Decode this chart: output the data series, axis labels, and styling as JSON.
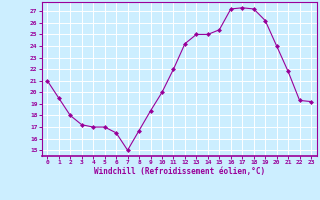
{
  "x": [
    0,
    1,
    2,
    3,
    4,
    5,
    6,
    7,
    8,
    9,
    10,
    11,
    12,
    13,
    14,
    15,
    16,
    17,
    18,
    19,
    20,
    21,
    22,
    23
  ],
  "y": [
    21.0,
    19.5,
    18.0,
    17.2,
    17.0,
    17.0,
    16.5,
    15.0,
    16.7,
    18.4,
    20.0,
    22.0,
    24.2,
    25.0,
    25.0,
    25.4,
    27.2,
    27.3,
    27.2,
    26.2,
    24.0,
    21.8,
    19.3,
    19.2
  ],
  "line_color": "#990099",
  "marker": "D",
  "marker_size": 2.0,
  "bg_color": "#cceeff",
  "grid_color": "#ffffff",
  "xlabel": "Windchill (Refroidissement éolien,°C)",
  "xlabel_color": "#990099",
  "xtick_labels": [
    "0",
    "1",
    "2",
    "3",
    "4",
    "5",
    "6",
    "7",
    "8",
    "9",
    "10",
    "11",
    "12",
    "13",
    "14",
    "15",
    "16",
    "17",
    "18",
    "19",
    "20",
    "21",
    "22",
    "23"
  ],
  "ytick_labels": [
    "15",
    "16",
    "17",
    "18",
    "19",
    "20",
    "21",
    "22",
    "23",
    "24",
    "25",
    "26",
    "27"
  ],
  "ylim": [
    14.5,
    27.8
  ],
  "xlim": [
    -0.5,
    23.5
  ],
  "tick_color": "#990099",
  "spine_color": "#990099"
}
